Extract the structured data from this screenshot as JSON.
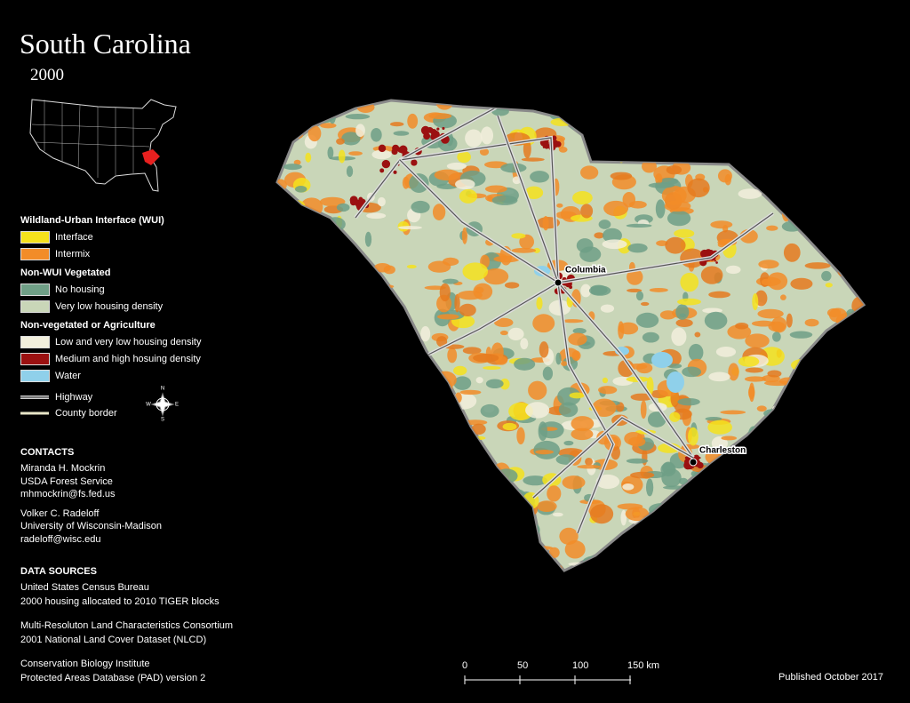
{
  "header": {
    "title": "South Carolina",
    "subtitle": "2000"
  },
  "legend": {
    "groups": [
      {
        "heading": "Wildland-Urban Interface (WUI)",
        "items": [
          {
            "label": "Interface",
            "color": "#f5e21c"
          },
          {
            "label": "Intermix",
            "color": "#f28c28"
          }
        ]
      },
      {
        "heading": "Non-WUI Vegetated",
        "items": [
          {
            "label": "No housing",
            "color": "#6f9f86"
          },
          {
            "label": "Very low housing density",
            "color": "#c9d6b8"
          }
        ]
      },
      {
        "heading": "Non-vegetated or Agriculture",
        "items": [
          {
            "label": "Low and very low housing density",
            "color": "#f2efdc"
          },
          {
            "label": "Medium and high hosuing density",
            "color": "#9b1111"
          },
          {
            "label": "Water",
            "color": "#8fd0ea"
          }
        ]
      }
    ],
    "lines": [
      {
        "label": "Highway"
      },
      {
        "label": "County border"
      }
    ]
  },
  "compass": {
    "n": "N",
    "s": "S",
    "e": "E",
    "w": "W"
  },
  "contacts": {
    "heading": "CONTACTS",
    "people": [
      [
        "Miranda H. Mockrin",
        "USDA Forest Service",
        "mhmockrin@fs.fed.us"
      ],
      [
        "Volker C. Radeloff",
        "University of Wisconsin-Madison",
        "radeloff@wisc.edu"
      ]
    ]
  },
  "data_sources": {
    "heading": "DATA SOURCES",
    "sources": [
      [
        "United States Census Bureau",
        "2000 housing allocated to 2010 TIGER blocks"
      ],
      [
        "Multi-Resoluton Land Characteristics Consortium",
        "2001 National Land Cover Dataset (NLCD)"
      ],
      [
        "Conservation Biology Institute",
        "Protected Areas Database (PAD) version 2"
      ]
    ]
  },
  "map": {
    "cities": [
      "Columbia",
      "Charleston"
    ],
    "scale": [
      "0",
      "50",
      "100",
      "150 km"
    ]
  },
  "footer": {
    "published": "Published October 2017"
  }
}
